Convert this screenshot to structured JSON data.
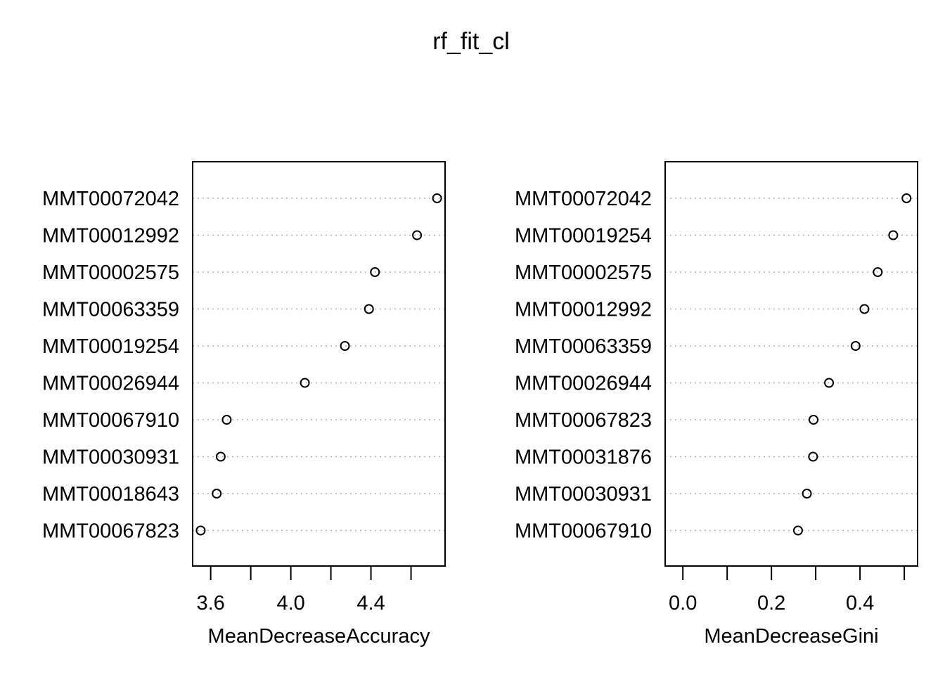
{
  "title": "rf_fit_cl",
  "chart_data": [
    {
      "type": "scatter",
      "xlabel": "MeanDecreaseAccuracy",
      "xlim": [
        3.51,
        4.77
      ],
      "xticks": [
        3.6,
        3.8,
        4.0,
        4.2,
        4.4,
        4.6
      ],
      "xtick_labels": [
        "3.6",
        "",
        "4.0",
        "",
        "4.4",
        ""
      ],
      "grid": true,
      "categories": [
        "MMT00072042",
        "MMT00012992",
        "MMT00002575",
        "MMT00063359",
        "MMT00019254",
        "MMT00026944",
        "MMT00067910",
        "MMT00030931",
        "MMT00018643",
        "MMT00067823"
      ],
      "values": [
        4.73,
        4.63,
        4.42,
        4.39,
        4.27,
        4.07,
        3.68,
        3.65,
        3.63,
        3.55
      ]
    },
    {
      "type": "scatter",
      "xlabel": "MeanDecreaseGini",
      "xlim": [
        -0.04,
        0.53
      ],
      "xticks": [
        0.0,
        0.1,
        0.2,
        0.3,
        0.4,
        0.5
      ],
      "xtick_labels": [
        "0.0",
        "",
        "0.2",
        "",
        "0.4",
        ""
      ],
      "grid": true,
      "categories": [
        "MMT00072042",
        "MMT00019254",
        "MMT00002575",
        "MMT00012992",
        "MMT00063359",
        "MMT00026944",
        "MMT00067823",
        "MMT00031876",
        "MMT00030931",
        "MMT00067910"
      ],
      "values": [
        0.505,
        0.475,
        0.44,
        0.41,
        0.39,
        0.33,
        0.295,
        0.294,
        0.28,
        0.26
      ]
    }
  ]
}
